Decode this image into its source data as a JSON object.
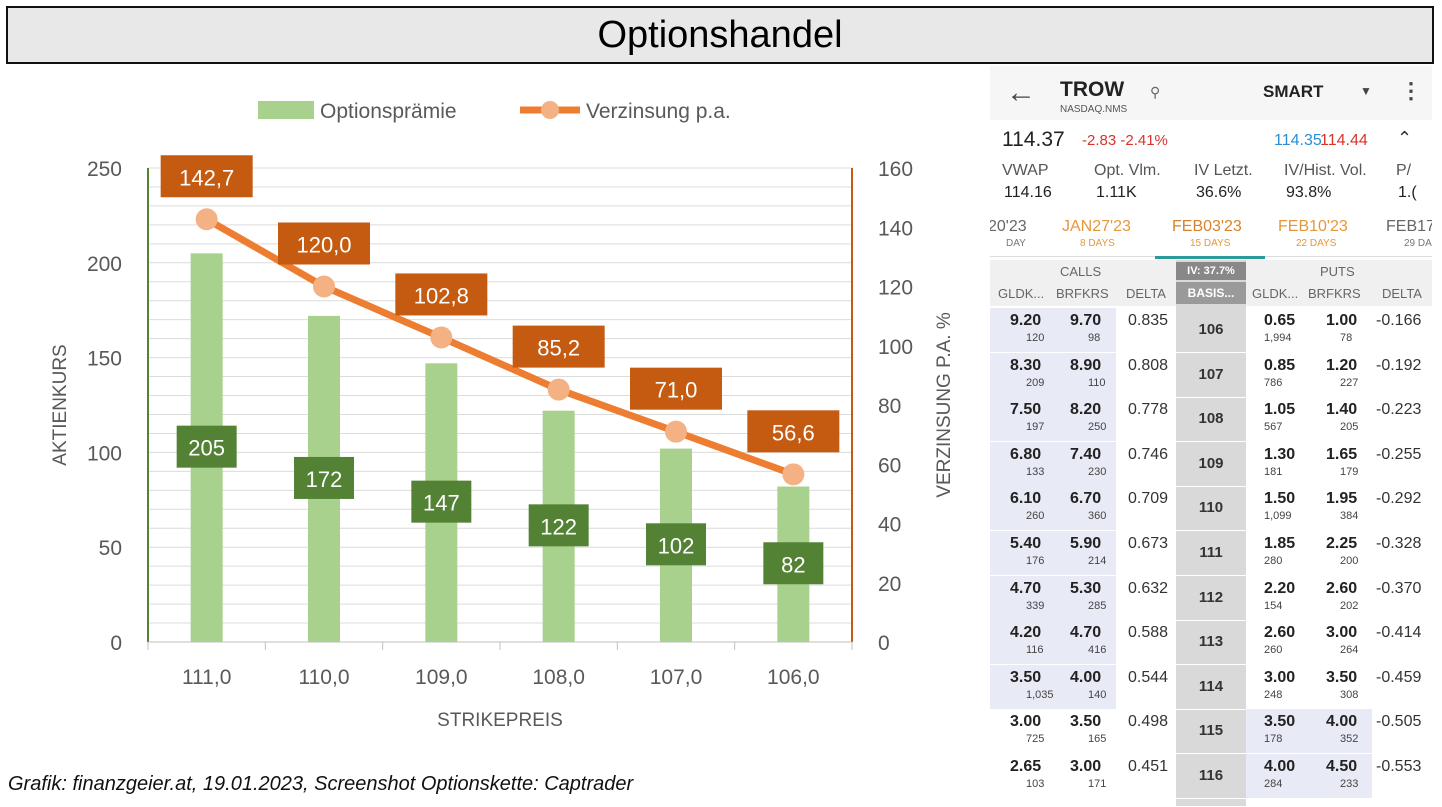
{
  "header": {
    "title": "Optionshandel"
  },
  "chart_data": {
    "type": "bar+line",
    "categories": [
      "111,0",
      "110,0",
      "109,0",
      "108,0",
      "107,0",
      "106,0"
    ],
    "series": [
      {
        "name": "Optionsprämie",
        "type": "bar",
        "axis": "left",
        "values": [
          205,
          172,
          147,
          122,
          102,
          82
        ],
        "labels": [
          "205",
          "172",
          "147",
          "122",
          "102",
          "82"
        ],
        "color": "#a9d18e",
        "label_color": "#548235"
      },
      {
        "name": "Verzinsung p.a.",
        "type": "line",
        "axis": "right",
        "values": [
          142.7,
          120.0,
          102.8,
          85.2,
          71.0,
          56.6
        ],
        "labels": [
          "142,7",
          "120,0",
          "102,8",
          "85,2",
          "71,0",
          "56,6"
        ],
        "color": "#ed7d31",
        "marker_color": "#f4b183",
        "label_color": "#c55a11"
      }
    ],
    "xlabel": "STRIKEPREIS",
    "ylabel": "AKTIENKURS",
    "y2label": "VERZINSUNG P.A. %",
    "ylim": [
      0,
      250
    ],
    "y2lim": [
      0,
      160
    ],
    "yticks": [
      "0",
      "50",
      "100",
      "150",
      "200",
      "250"
    ],
    "y2ticks": [
      "0",
      "20",
      "40",
      "60",
      "80",
      "100",
      "120",
      "140",
      "160"
    ],
    "grid": true,
    "legend": "top"
  },
  "caption": "Grafik: finanzgeier.at, 19.01.2023, Screenshot Optionskette: Captrader",
  "options": {
    "symbol": "TROW",
    "exchange": "NASDAQ.NMS",
    "route": "SMART",
    "last": "114.37",
    "change": "-2.83 -2.41%",
    "bid": "114.35",
    "ask": "114.44",
    "stats": [
      {
        "label": "VWAP",
        "value": "114.16"
      },
      {
        "label": "Opt. Vlm.",
        "value": "1.11K"
      },
      {
        "label": "IV Letzt.",
        "value": "36.6%"
      },
      {
        "label": "IV/Hist. Vol.",
        "value": "93.8%"
      },
      {
        "label": "P/",
        "value": "1.("
      }
    ],
    "expiries": [
      {
        "label": "20'23",
        "days": "DAY"
      },
      {
        "label": "JAN27'23",
        "days": "8 DAYS"
      },
      {
        "label": "FEB03'23",
        "days": "15 DAYS"
      },
      {
        "label": "FEB10'23",
        "days": "22 DAYS"
      },
      {
        "label": "FEB17",
        "days": "29 DA"
      }
    ],
    "calls_label": "CALLS",
    "puts_label": "PUTS",
    "iv_badge": "IV: 37.7%",
    "basis_label": "BASIS...",
    "col_bid": "GLDK...",
    "col_ask": "BRFKRS",
    "col_delta": "DELTA",
    "rows": [
      {
        "strike": "106",
        "c_bid": "9.20",
        "c_bsz": "120",
        "c_ask": "9.70",
        "c_asz": "98",
        "c_delta": "0.835",
        "p_bid": "0.65",
        "p_bsz": "1,994",
        "p_ask": "1.00",
        "p_asz": "78",
        "p_delta": "-0.166"
      },
      {
        "strike": "107",
        "c_bid": "8.30",
        "c_bsz": "209",
        "c_ask": "8.90",
        "c_asz": "110",
        "c_delta": "0.808",
        "p_bid": "0.85",
        "p_bsz": "786",
        "p_ask": "1.20",
        "p_asz": "227",
        "p_delta": "-0.192"
      },
      {
        "strike": "108",
        "c_bid": "7.50",
        "c_bsz": "197",
        "c_ask": "8.20",
        "c_asz": "250",
        "c_delta": "0.778",
        "p_bid": "1.05",
        "p_bsz": "567",
        "p_ask": "1.40",
        "p_asz": "205",
        "p_delta": "-0.223"
      },
      {
        "strike": "109",
        "c_bid": "6.80",
        "c_bsz": "133",
        "c_ask": "7.40",
        "c_asz": "230",
        "c_delta": "0.746",
        "p_bid": "1.30",
        "p_bsz": "181",
        "p_ask": "1.65",
        "p_asz": "179",
        "p_delta": "-0.255"
      },
      {
        "strike": "110",
        "c_bid": "6.10",
        "c_bsz": "260",
        "c_ask": "6.70",
        "c_asz": "360",
        "c_delta": "0.709",
        "p_bid": "1.50",
        "p_bsz": "1,099",
        "p_ask": "1.95",
        "p_asz": "384",
        "p_delta": "-0.292"
      },
      {
        "strike": "111",
        "c_bid": "5.40",
        "c_bsz": "176",
        "c_ask": "5.90",
        "c_asz": "214",
        "c_delta": "0.673",
        "p_bid": "1.85",
        "p_bsz": "280",
        "p_ask": "2.25",
        "p_asz": "200",
        "p_delta": "-0.328"
      },
      {
        "strike": "112",
        "c_bid": "4.70",
        "c_bsz": "339",
        "c_ask": "5.30",
        "c_asz": "285",
        "c_delta": "0.632",
        "p_bid": "2.20",
        "p_bsz": "154",
        "p_ask": "2.60",
        "p_asz": "202",
        "p_delta": "-0.370"
      },
      {
        "strike": "113",
        "c_bid": "4.20",
        "c_bsz": "116",
        "c_ask": "4.70",
        "c_asz": "416",
        "c_delta": "0.588",
        "p_bid": "2.60",
        "p_bsz": "260",
        "p_ask": "3.00",
        "p_asz": "264",
        "p_delta": "-0.414"
      },
      {
        "strike": "114",
        "c_bid": "3.50",
        "c_bsz": "1,035",
        "c_ask": "4.00",
        "c_asz": "140",
        "c_delta": "0.544",
        "p_bid": "3.00",
        "p_bsz": "248",
        "p_ask": "3.50",
        "p_asz": "308",
        "p_delta": "-0.459"
      },
      {
        "strike": "115",
        "c_bid": "3.00",
        "c_bsz": "725",
        "c_ask": "3.50",
        "c_asz": "165",
        "c_delta": "0.498",
        "p_bid": "3.50",
        "p_bsz": "178",
        "p_ask": "4.00",
        "p_asz": "352",
        "p_delta": "-0.505"
      },
      {
        "strike": "116",
        "c_bid": "2.65",
        "c_bsz": "103",
        "c_ask": "3.00",
        "c_asz": "171",
        "c_delta": "0.451",
        "p_bid": "4.00",
        "p_bsz": "284",
        "p_ask": "4.50",
        "p_asz": "233",
        "p_delta": "-0.553"
      }
    ]
  }
}
